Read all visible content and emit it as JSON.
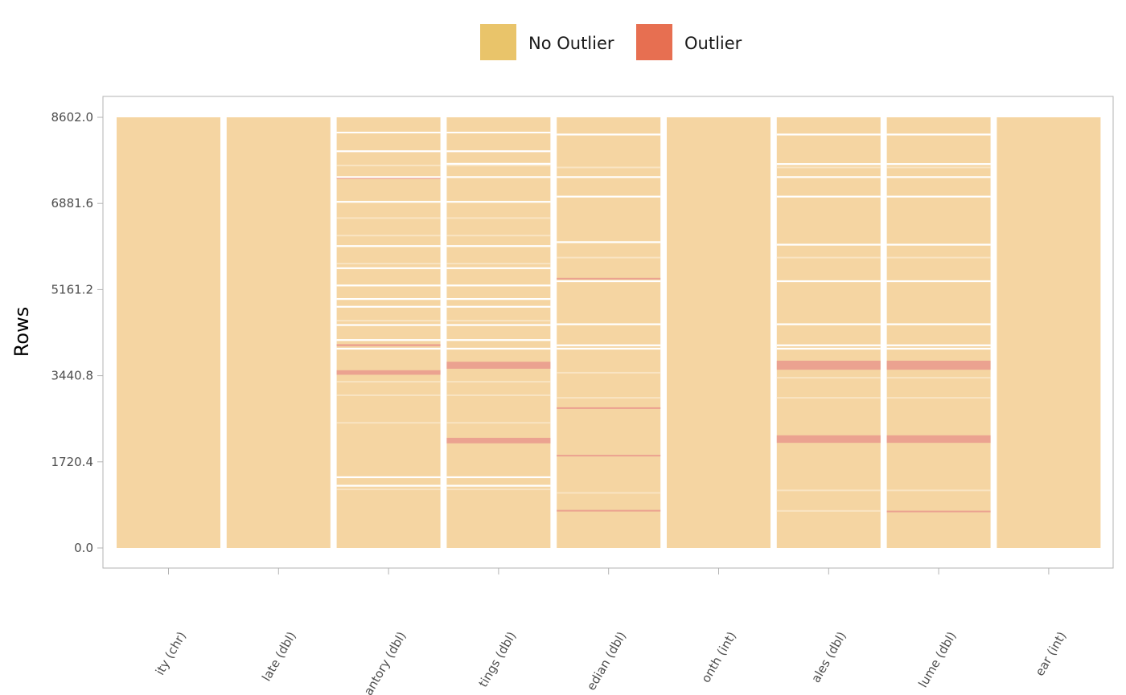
{
  "chart_data": {
    "type": "heatmap",
    "title": "",
    "xlabel": "",
    "ylabel": "Rows",
    "ylim": [
      0,
      8602
    ],
    "y_ticks": [
      "0.0",
      "1720.4",
      "3440.8",
      "5161.2",
      "6881.6",
      "8602.0"
    ],
    "y_tick_values": [
      0,
      1720.4,
      3440.8,
      5161.2,
      6881.6,
      8602.0
    ],
    "legend": {
      "placement": "top",
      "items": [
        {
          "label": "No Outlier",
          "color": "#E9C46A"
        },
        {
          "label": "Outlier",
          "color": "#E76F51"
        }
      ]
    },
    "colors": {
      "no_outlier_fill": "#F5D5A2",
      "outlier_fill": "#EBA290",
      "gap": "#FFFFFF"
    },
    "columns": [
      {
        "label": "city (chr)",
        "shown_label": "ity (chr)",
        "gaps": [],
        "outliers": [],
        "faint": []
      },
      {
        "label": "date (dbl)",
        "shown_label": "late (dbl)",
        "gaps": [],
        "outliers": [],
        "faint": []
      },
      {
        "label": "inventory (dbl)",
        "shown_label": "antory (dbl)",
        "gaps": [
          [
            8302,
            8314
          ],
          [
            7906,
            7942
          ],
          [
            7390,
            7426
          ],
          [
            6896,
            6932
          ],
          [
            6012,
            6048
          ],
          [
            5570,
            5606
          ],
          [
            5225,
            5261
          ],
          [
            4955,
            4991
          ],
          [
            4800,
            4836
          ],
          [
            4435,
            4471
          ],
          [
            4135,
            4171
          ],
          [
            3963,
            3999
          ],
          [
            1395,
            1431
          ],
          [
            1225,
            1261
          ]
        ],
        "outliers": [
          [
            7370,
            7420
          ],
          [
            4030,
            4070
          ],
          [
            3460,
            3550
          ]
        ],
        "faint": [
          7640,
          6590,
          6240,
          5680,
          4540,
          3320,
          3050,
          2500,
          1170
        ]
      },
      {
        "label": "listings (dbl)",
        "shown_label": "tings (dbl)",
        "gaps": [
          [
            8302,
            8314
          ],
          [
            7906,
            7942
          ],
          [
            7655,
            7691
          ],
          [
            7390,
            7426
          ],
          [
            6896,
            6932
          ],
          [
            6012,
            6048
          ],
          [
            5570,
            5606
          ],
          [
            5225,
            5261
          ],
          [
            4955,
            4991
          ],
          [
            4800,
            4836
          ],
          [
            4435,
            4471
          ],
          [
            4135,
            4171
          ],
          [
            3963,
            3999
          ],
          [
            1395,
            1431
          ],
          [
            1225,
            1261
          ]
        ],
        "outliers": [
          [
            3580,
            3720
          ],
          [
            2090,
            2200
          ]
        ],
        "faint": [
          7640,
          6590,
          6240,
          5680,
          4540,
          3320,
          3050,
          2500,
          1170
        ]
      },
      {
        "label": "median (dbl)",
        "shown_label": "edian (dbl)",
        "gaps": [
          [
            8240,
            8276
          ],
          [
            7390,
            7426
          ],
          [
            7000,
            7036
          ],
          [
            6090,
            6126
          ],
          [
            5310,
            5346
          ],
          [
            4450,
            4486
          ],
          [
            4030,
            4066
          ],
          [
            3963,
            3999
          ]
        ],
        "outliers": [
          [
            5370,
            5395
          ],
          [
            2785,
            2810
          ],
          [
            1835,
            1860
          ],
          [
            735,
            760
          ]
        ],
        "faint": [
          7600,
          5800,
          3500,
          3000,
          1100
        ]
      },
      {
        "label": "month (int)",
        "shown_label": "onth (int)",
        "gaps": [],
        "outliers": [],
        "faint": []
      },
      {
        "label": "sales (dbl)",
        "shown_label": "ales (dbl)",
        "gaps": [
          [
            8240,
            8276
          ],
          [
            7650,
            7686
          ],
          [
            7390,
            7426
          ],
          [
            7000,
            7036
          ],
          [
            6040,
            6076
          ],
          [
            5310,
            5346
          ],
          [
            4450,
            4486
          ],
          [
            4030,
            4066
          ],
          [
            3963,
            3999
          ]
        ],
        "outliers": [
          [
            3560,
            3740
          ],
          [
            2100,
            2250
          ]
        ],
        "faint": [
          7600,
          5800,
          3400,
          3000,
          1150,
          740
        ]
      },
      {
        "label": "volume (dbl)",
        "shown_label": "lume (dbl)",
        "gaps": [
          [
            8240,
            8276
          ],
          [
            7650,
            7686
          ],
          [
            7390,
            7426
          ],
          [
            7000,
            7036
          ],
          [
            6040,
            6076
          ],
          [
            5310,
            5346
          ],
          [
            4450,
            4486
          ],
          [
            4030,
            4066
          ],
          [
            3963,
            3999
          ]
        ],
        "outliers": [
          [
            3560,
            3740
          ],
          [
            2100,
            2250
          ],
          [
            725,
            745
          ]
        ],
        "faint": [
          7600,
          5800,
          3400,
          3000,
          1150
        ]
      },
      {
        "label": "year (int)",
        "shown_label": "ear (int)",
        "gaps": [],
        "outliers": [],
        "faint": []
      }
    ]
  }
}
